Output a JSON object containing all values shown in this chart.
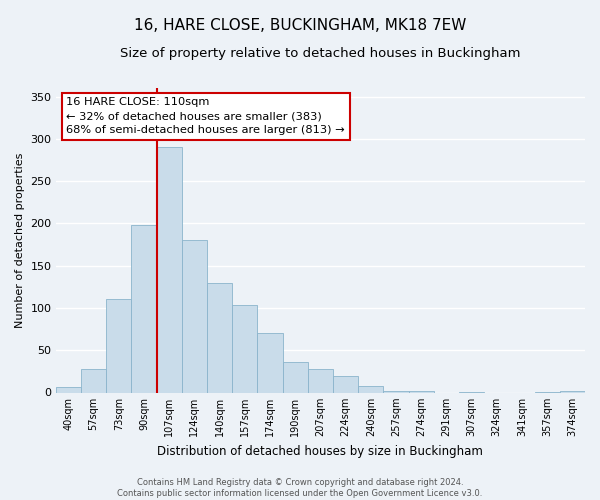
{
  "title": "16, HARE CLOSE, BUCKINGHAM, MK18 7EW",
  "subtitle": "Size of property relative to detached houses in Buckingham",
  "xlabel": "Distribution of detached houses by size in Buckingham",
  "ylabel": "Number of detached properties",
  "categories": [
    "40sqm",
    "57sqm",
    "73sqm",
    "90sqm",
    "107sqm",
    "124sqm",
    "140sqm",
    "157sqm",
    "174sqm",
    "190sqm",
    "207sqm",
    "224sqm",
    "240sqm",
    "257sqm",
    "274sqm",
    "291sqm",
    "307sqm",
    "324sqm",
    "341sqm",
    "357sqm",
    "374sqm"
  ],
  "values": [
    7,
    28,
    110,
    198,
    290,
    180,
    130,
    103,
    70,
    36,
    28,
    20,
    8,
    2,
    2,
    0,
    1,
    0,
    0,
    1,
    2
  ],
  "bar_color": "#c9dcea",
  "bar_edge_color": "#8ab4cc",
  "vline_x_index": 4,
  "vline_color": "#cc0000",
  "annotation_line1": "16 HARE CLOSE: 110sqm",
  "annotation_line2": "← 32% of detached houses are smaller (383)",
  "annotation_line3": "68% of semi-detached houses are larger (813) →",
  "annotation_box_color": "#ffffff",
  "annotation_box_edge": "#cc0000",
  "ylim": [
    0,
    360
  ],
  "yticks": [
    0,
    50,
    100,
    150,
    200,
    250,
    300,
    350
  ],
  "title_fontsize": 11,
  "subtitle_fontsize": 9.5,
  "footer_text": "Contains HM Land Registry data © Crown copyright and database right 2024.\nContains public sector information licensed under the Open Government Licence v3.0.",
  "bg_color": "#edf2f7",
  "grid_color": "#ffffff",
  "axis_bg_color": "#edf2f7"
}
